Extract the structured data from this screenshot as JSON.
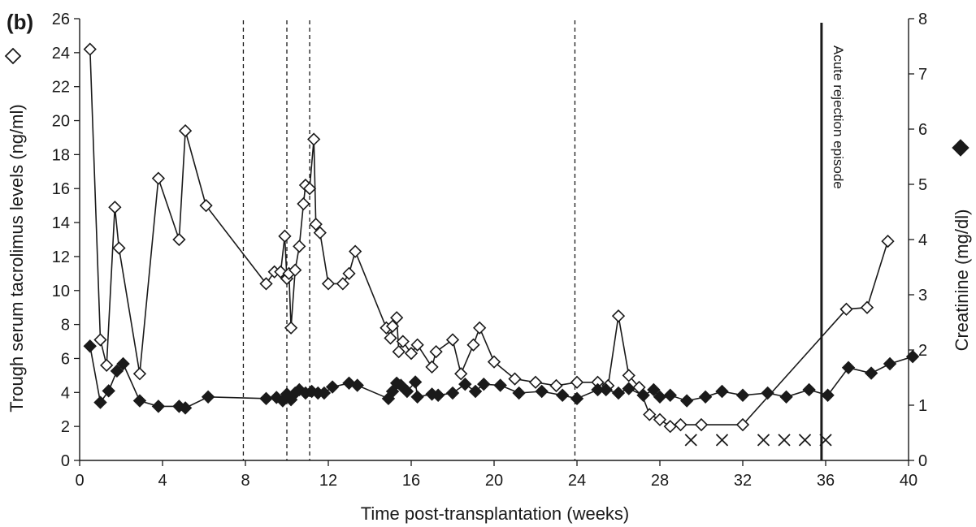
{
  "chart_data": {
    "type": "line",
    "panel_label": "(b)",
    "xlabel": "Time post-transplantation (weeks)",
    "ylabel_left": "Trough serum tacrolimus levels (ng/ml)",
    "ylabel_right": "Creatinine (mg/dl)",
    "xlim": [
      0,
      40
    ],
    "ylim_left": [
      0,
      26
    ],
    "ylim_right": [
      0,
      8
    ],
    "x_ticks": [
      0,
      4,
      8,
      12,
      16,
      20,
      24,
      28,
      32,
      36,
      40
    ],
    "y_left_ticks": [
      0,
      2,
      4,
      6,
      8,
      10,
      12,
      14,
      16,
      18,
      20,
      22,
      24,
      26
    ],
    "y_right_ticks": [
      0,
      1,
      2,
      3,
      4,
      5,
      6,
      7,
      8
    ],
    "grid": false,
    "legend": "axis-side symbols",
    "colors": {
      "line": "#1a1a1a",
      "open_marker": "#ffffff",
      "filled_marker": "#1a1a1a"
    },
    "series": [
      {
        "marker": "open-diamond",
        "axis": "left",
        "points": [
          [
            0.5,
            24.2
          ],
          [
            1.0,
            7.1
          ],
          [
            1.3,
            5.6
          ],
          [
            1.7,
            14.9
          ],
          [
            1.9,
            12.5
          ],
          [
            2.9,
            5.1
          ],
          [
            3.8,
            16.6
          ],
          [
            4.8,
            13.0
          ],
          [
            5.1,
            19.4
          ],
          [
            6.1,
            15.0
          ],
          [
            9.0,
            10.4
          ],
          [
            9.4,
            11.1
          ],
          [
            9.7,
            11.1
          ],
          [
            9.9,
            13.2
          ],
          [
            10.0,
            10.7
          ],
          [
            10.1,
            11.0
          ],
          [
            10.2,
            7.8
          ],
          [
            10.4,
            11.2
          ],
          [
            10.6,
            12.6
          ],
          [
            10.8,
            15.1
          ],
          [
            10.9,
            16.2
          ],
          [
            11.1,
            16.0
          ],
          [
            11.3,
            18.9
          ],
          [
            11.4,
            13.9
          ],
          [
            11.6,
            13.4
          ],
          [
            12.0,
            10.4
          ],
          [
            12.7,
            10.4
          ],
          [
            13.0,
            11.0
          ],
          [
            13.3,
            12.3
          ],
          [
            14.8,
            7.8
          ],
          [
            15.0,
            7.2
          ],
          [
            15.1,
            7.9
          ],
          [
            15.3,
            8.4
          ],
          [
            15.4,
            6.4
          ],
          [
            15.6,
            7.0
          ],
          [
            16.0,
            6.3
          ],
          [
            16.3,
            6.8
          ],
          [
            17.0,
            5.5
          ],
          [
            17.2,
            6.4
          ],
          [
            18.0,
            7.1
          ],
          [
            18.4,
            5.1
          ],
          [
            19.0,
            6.8
          ],
          [
            19.3,
            7.8
          ],
          [
            20.0,
            5.8
          ],
          [
            21.0,
            4.8
          ],
          [
            22.0,
            4.6
          ],
          [
            23.0,
            4.4
          ],
          [
            24.0,
            4.6
          ],
          [
            25.0,
            4.6
          ],
          [
            25.5,
            4.4
          ],
          [
            26.0,
            8.5
          ],
          [
            26.5,
            5.0
          ],
          [
            27.0,
            4.3
          ],
          [
            27.5,
            2.7
          ],
          [
            28.0,
            2.4
          ],
          [
            28.5,
            2.0
          ],
          [
            29.0,
            2.1
          ],
          [
            30.0,
            2.1
          ],
          [
            32.0,
            2.1
          ],
          [
            37.0,
            8.9
          ],
          [
            38.0,
            9.0
          ],
          [
            39.0,
            12.9
          ]
        ]
      },
      {
        "marker": "x",
        "axis": "left",
        "points": [
          [
            29.5,
            1.2
          ],
          [
            31.0,
            1.2
          ],
          [
            33.0,
            1.2
          ],
          [
            34.0,
            1.2
          ],
          [
            35.0,
            1.2
          ],
          [
            36.0,
            1.2
          ]
        ]
      },
      {
        "marker": "filled-diamond",
        "axis": "right",
        "points": [
          [
            0.5,
            2.07
          ],
          [
            1.0,
            1.05
          ],
          [
            1.4,
            1.26
          ],
          [
            1.8,
            1.62
          ],
          [
            2.1,
            1.75
          ],
          [
            2.9,
            1.08
          ],
          [
            3.8,
            0.98
          ],
          [
            4.8,
            0.98
          ],
          [
            5.1,
            0.95
          ],
          [
            6.2,
            1.15
          ],
          [
            9.0,
            1.12
          ],
          [
            9.5,
            1.14
          ],
          [
            9.8,
            1.08
          ],
          [
            10.0,
            1.2
          ],
          [
            10.2,
            1.1
          ],
          [
            10.4,
            1.22
          ],
          [
            10.6,
            1.28
          ],
          [
            10.9,
            1.22
          ],
          [
            11.2,
            1.25
          ],
          [
            11.5,
            1.22
          ],
          [
            11.8,
            1.22
          ],
          [
            12.2,
            1.33
          ],
          [
            13.0,
            1.4
          ],
          [
            13.4,
            1.36
          ],
          [
            14.9,
            1.12
          ],
          [
            15.1,
            1.25
          ],
          [
            15.3,
            1.4
          ],
          [
            15.5,
            1.36
          ],
          [
            15.8,
            1.25
          ],
          [
            16.2,
            1.42
          ],
          [
            16.3,
            1.15
          ],
          [
            17.0,
            1.2
          ],
          [
            17.3,
            1.18
          ],
          [
            18.0,
            1.22
          ],
          [
            18.6,
            1.38
          ],
          [
            19.1,
            1.25
          ],
          [
            19.5,
            1.38
          ],
          [
            20.3,
            1.36
          ],
          [
            21.2,
            1.22
          ],
          [
            22.3,
            1.25
          ],
          [
            23.3,
            1.18
          ],
          [
            24.0,
            1.12
          ],
          [
            25.0,
            1.28
          ],
          [
            25.4,
            1.28
          ],
          [
            26.0,
            1.22
          ],
          [
            26.5,
            1.3
          ],
          [
            27.2,
            1.18
          ],
          [
            27.7,
            1.28
          ],
          [
            28.0,
            1.15
          ],
          [
            28.5,
            1.18
          ],
          [
            29.3,
            1.08
          ],
          [
            30.2,
            1.15
          ],
          [
            31.0,
            1.25
          ],
          [
            32.0,
            1.18
          ],
          [
            33.2,
            1.22
          ],
          [
            34.1,
            1.15
          ],
          [
            35.2,
            1.28
          ],
          [
            36.1,
            1.18
          ],
          [
            37.1,
            1.68
          ],
          [
            38.2,
            1.58
          ],
          [
            39.1,
            1.75
          ],
          [
            40.2,
            1.88
          ]
        ]
      }
    ],
    "dashed_vlines": [
      7.9,
      10.0,
      11.1,
      23.9
    ],
    "solid_vline": 35.8,
    "annotation": "Acute rejection episode"
  }
}
